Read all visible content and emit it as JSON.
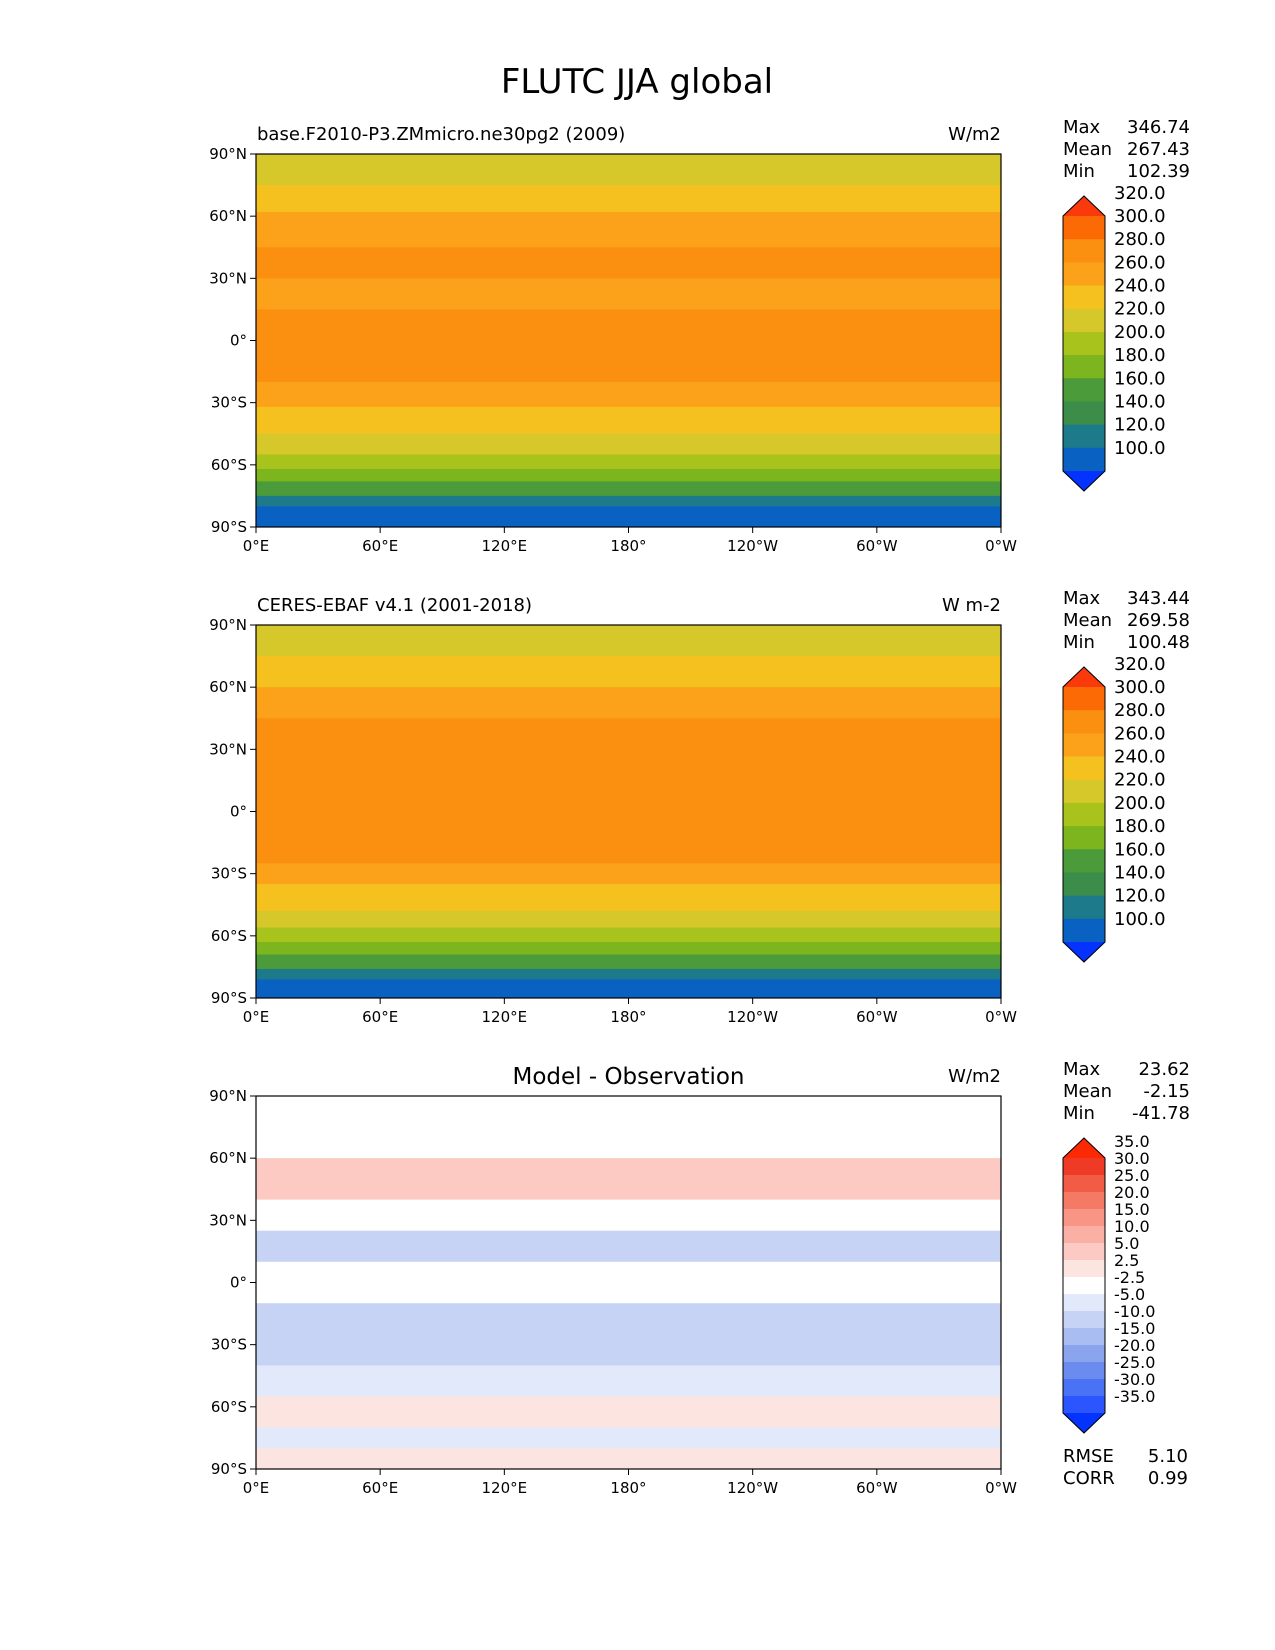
{
  "figure": {
    "title": "FLUTC JJA global"
  },
  "lat_ticks": [
    "90°N",
    "60°N",
    "30°N",
    "0°",
    "30°S",
    "60°S",
    "90°S"
  ],
  "lon_ticks": [
    "0°E",
    "60°E",
    "120°E",
    "180°",
    "120°W",
    "60°W",
    "0°W"
  ],
  "chart_data": [
    {
      "type": "heatmap",
      "title": "base.F2010-P3.ZMmicro.ne30pg2 (2009)",
      "units": "W/m2",
      "stats": [
        {
          "label": "Max",
          "value": "346.74"
        },
        {
          "label": "Mean",
          "value": "267.43"
        },
        {
          "label": "Min",
          "value": "102.39"
        }
      ],
      "colorbar": {
        "levels": [
          "100.0",
          "120.0",
          "140.0",
          "160.0",
          "180.0",
          "200.0",
          "220.0",
          "240.0",
          "260.0",
          "280.0",
          "300.0",
          "320.0"
        ],
        "colors": [
          "#0433ff",
          "#0961c2",
          "#1d7a8a",
          "#3c8c4a",
          "#4b9b3a",
          "#7cb51e",
          "#a8c31c",
          "#d6c82a",
          "#f5c11f",
          "#fba21a",
          "#fb8f0f",
          "#fb6a05",
          "#fb3a0c"
        ]
      },
      "bands": [
        {
          "lat_top": 90,
          "lat_bottom": 75,
          "level_index": 7
        },
        {
          "lat_top": 75,
          "lat_bottom": 62,
          "level_index": 8
        },
        {
          "lat_top": 62,
          "lat_bottom": 45,
          "level_index": 9
        },
        {
          "lat_top": 45,
          "lat_bottom": 30,
          "level_index": 10
        },
        {
          "lat_top": 30,
          "lat_bottom": 15,
          "level_index": 9
        },
        {
          "lat_top": 15,
          "lat_bottom": -20,
          "level_index": 10
        },
        {
          "lat_top": -20,
          "lat_bottom": -32,
          "level_index": 9
        },
        {
          "lat_top": -32,
          "lat_bottom": -45,
          "level_index": 8
        },
        {
          "lat_top": -45,
          "lat_bottom": -55,
          "level_index": 7
        },
        {
          "lat_top": -55,
          "lat_bottom": -62,
          "level_index": 6
        },
        {
          "lat_top": -62,
          "lat_bottom": -68,
          "level_index": 5
        },
        {
          "lat_top": -68,
          "lat_bottom": -75,
          "level_index": 4
        },
        {
          "lat_top": -75,
          "lat_bottom": -80,
          "level_index": 2
        },
        {
          "lat_top": -80,
          "lat_bottom": -90,
          "level_index": 1
        }
      ]
    },
    {
      "type": "heatmap",
      "title": "CERES-EBAF v4.1 (2001-2018)",
      "units": "W m-2",
      "stats": [
        {
          "label": "Max",
          "value": "343.44"
        },
        {
          "label": "Mean",
          "value": "269.58"
        },
        {
          "label": "Min",
          "value": "100.48"
        }
      ],
      "colorbar": {
        "levels": [
          "100.0",
          "120.0",
          "140.0",
          "160.0",
          "180.0",
          "200.0",
          "220.0",
          "240.0",
          "260.0",
          "280.0",
          "300.0",
          "320.0"
        ],
        "colors": [
          "#0433ff",
          "#0961c2",
          "#1d7a8a",
          "#3c8c4a",
          "#4b9b3a",
          "#7cb51e",
          "#a8c31c",
          "#d6c82a",
          "#f5c11f",
          "#fba21a",
          "#fb8f0f",
          "#fb6a05",
          "#fb3a0c"
        ]
      },
      "bands": [
        {
          "lat_top": 90,
          "lat_bottom": 75,
          "level_index": 7
        },
        {
          "lat_top": 75,
          "lat_bottom": 60,
          "level_index": 8
        },
        {
          "lat_top": 60,
          "lat_bottom": 45,
          "level_index": 9
        },
        {
          "lat_top": 45,
          "lat_bottom": 15,
          "level_index": 10
        },
        {
          "lat_top": 15,
          "lat_bottom": -25,
          "level_index": 10
        },
        {
          "lat_top": -25,
          "lat_bottom": -35,
          "level_index": 9
        },
        {
          "lat_top": -35,
          "lat_bottom": -48,
          "level_index": 8
        },
        {
          "lat_top": -48,
          "lat_bottom": -56,
          "level_index": 7
        },
        {
          "lat_top": -56,
          "lat_bottom": -63,
          "level_index": 6
        },
        {
          "lat_top": -63,
          "lat_bottom": -69,
          "level_index": 5
        },
        {
          "lat_top": -69,
          "lat_bottom": -76,
          "level_index": 4
        },
        {
          "lat_top": -76,
          "lat_bottom": -81,
          "level_index": 2
        },
        {
          "lat_top": -81,
          "lat_bottom": -90,
          "level_index": 1
        }
      ]
    },
    {
      "type": "heatmap",
      "title": "Model - Observation",
      "units": "W/m2",
      "stats": [
        {
          "label": "Max",
          "value": "23.62"
        },
        {
          "label": "Mean",
          "value": "-2.15"
        },
        {
          "label": "Min",
          "value": "-41.78"
        }
      ],
      "extra_stats": [
        {
          "label": "RMSE",
          "value": "5.10"
        },
        {
          "label": "CORR",
          "value": "0.99"
        }
      ],
      "colorbar": {
        "levels": [
          "-35.0",
          "-30.0",
          "-25.0",
          "-20.0",
          "-15.0",
          "-10.0",
          "-5.0",
          "-2.5",
          "2.5",
          "5.0",
          "10.0",
          "15.0",
          "20.0",
          "25.0",
          "30.0",
          "35.0"
        ],
        "colors": [
          "#0433ff",
          "#2a55ff",
          "#4a72f5",
          "#6a8cee",
          "#8aa5ee",
          "#a9bdf2",
          "#c6d3f5",
          "#e2e9fa",
          "#ffffff",
          "#fce4e0",
          "#fccac2",
          "#fbb0a5",
          "#f89585",
          "#f57a66",
          "#f25b45",
          "#ef3b25",
          "#fb2a05"
        ]
      },
      "bands": [
        {
          "lat_top": 90,
          "lat_bottom": 60,
          "level_index": 8
        },
        {
          "lat_top": 60,
          "lat_bottom": 40,
          "level_index": 10
        },
        {
          "lat_top": 40,
          "lat_bottom": 25,
          "level_index": 8
        },
        {
          "lat_top": 25,
          "lat_bottom": 10,
          "level_index": 6
        },
        {
          "lat_top": 10,
          "lat_bottom": -10,
          "level_index": 8
        },
        {
          "lat_top": -10,
          "lat_bottom": -40,
          "level_index": 6
        },
        {
          "lat_top": -40,
          "lat_bottom": -55,
          "level_index": 7
        },
        {
          "lat_top": -55,
          "lat_bottom": -70,
          "level_index": 9
        },
        {
          "lat_top": -70,
          "lat_bottom": -80,
          "level_index": 7
        },
        {
          "lat_top": -80,
          "lat_bottom": -90,
          "level_index": 9
        }
      ]
    }
  ]
}
